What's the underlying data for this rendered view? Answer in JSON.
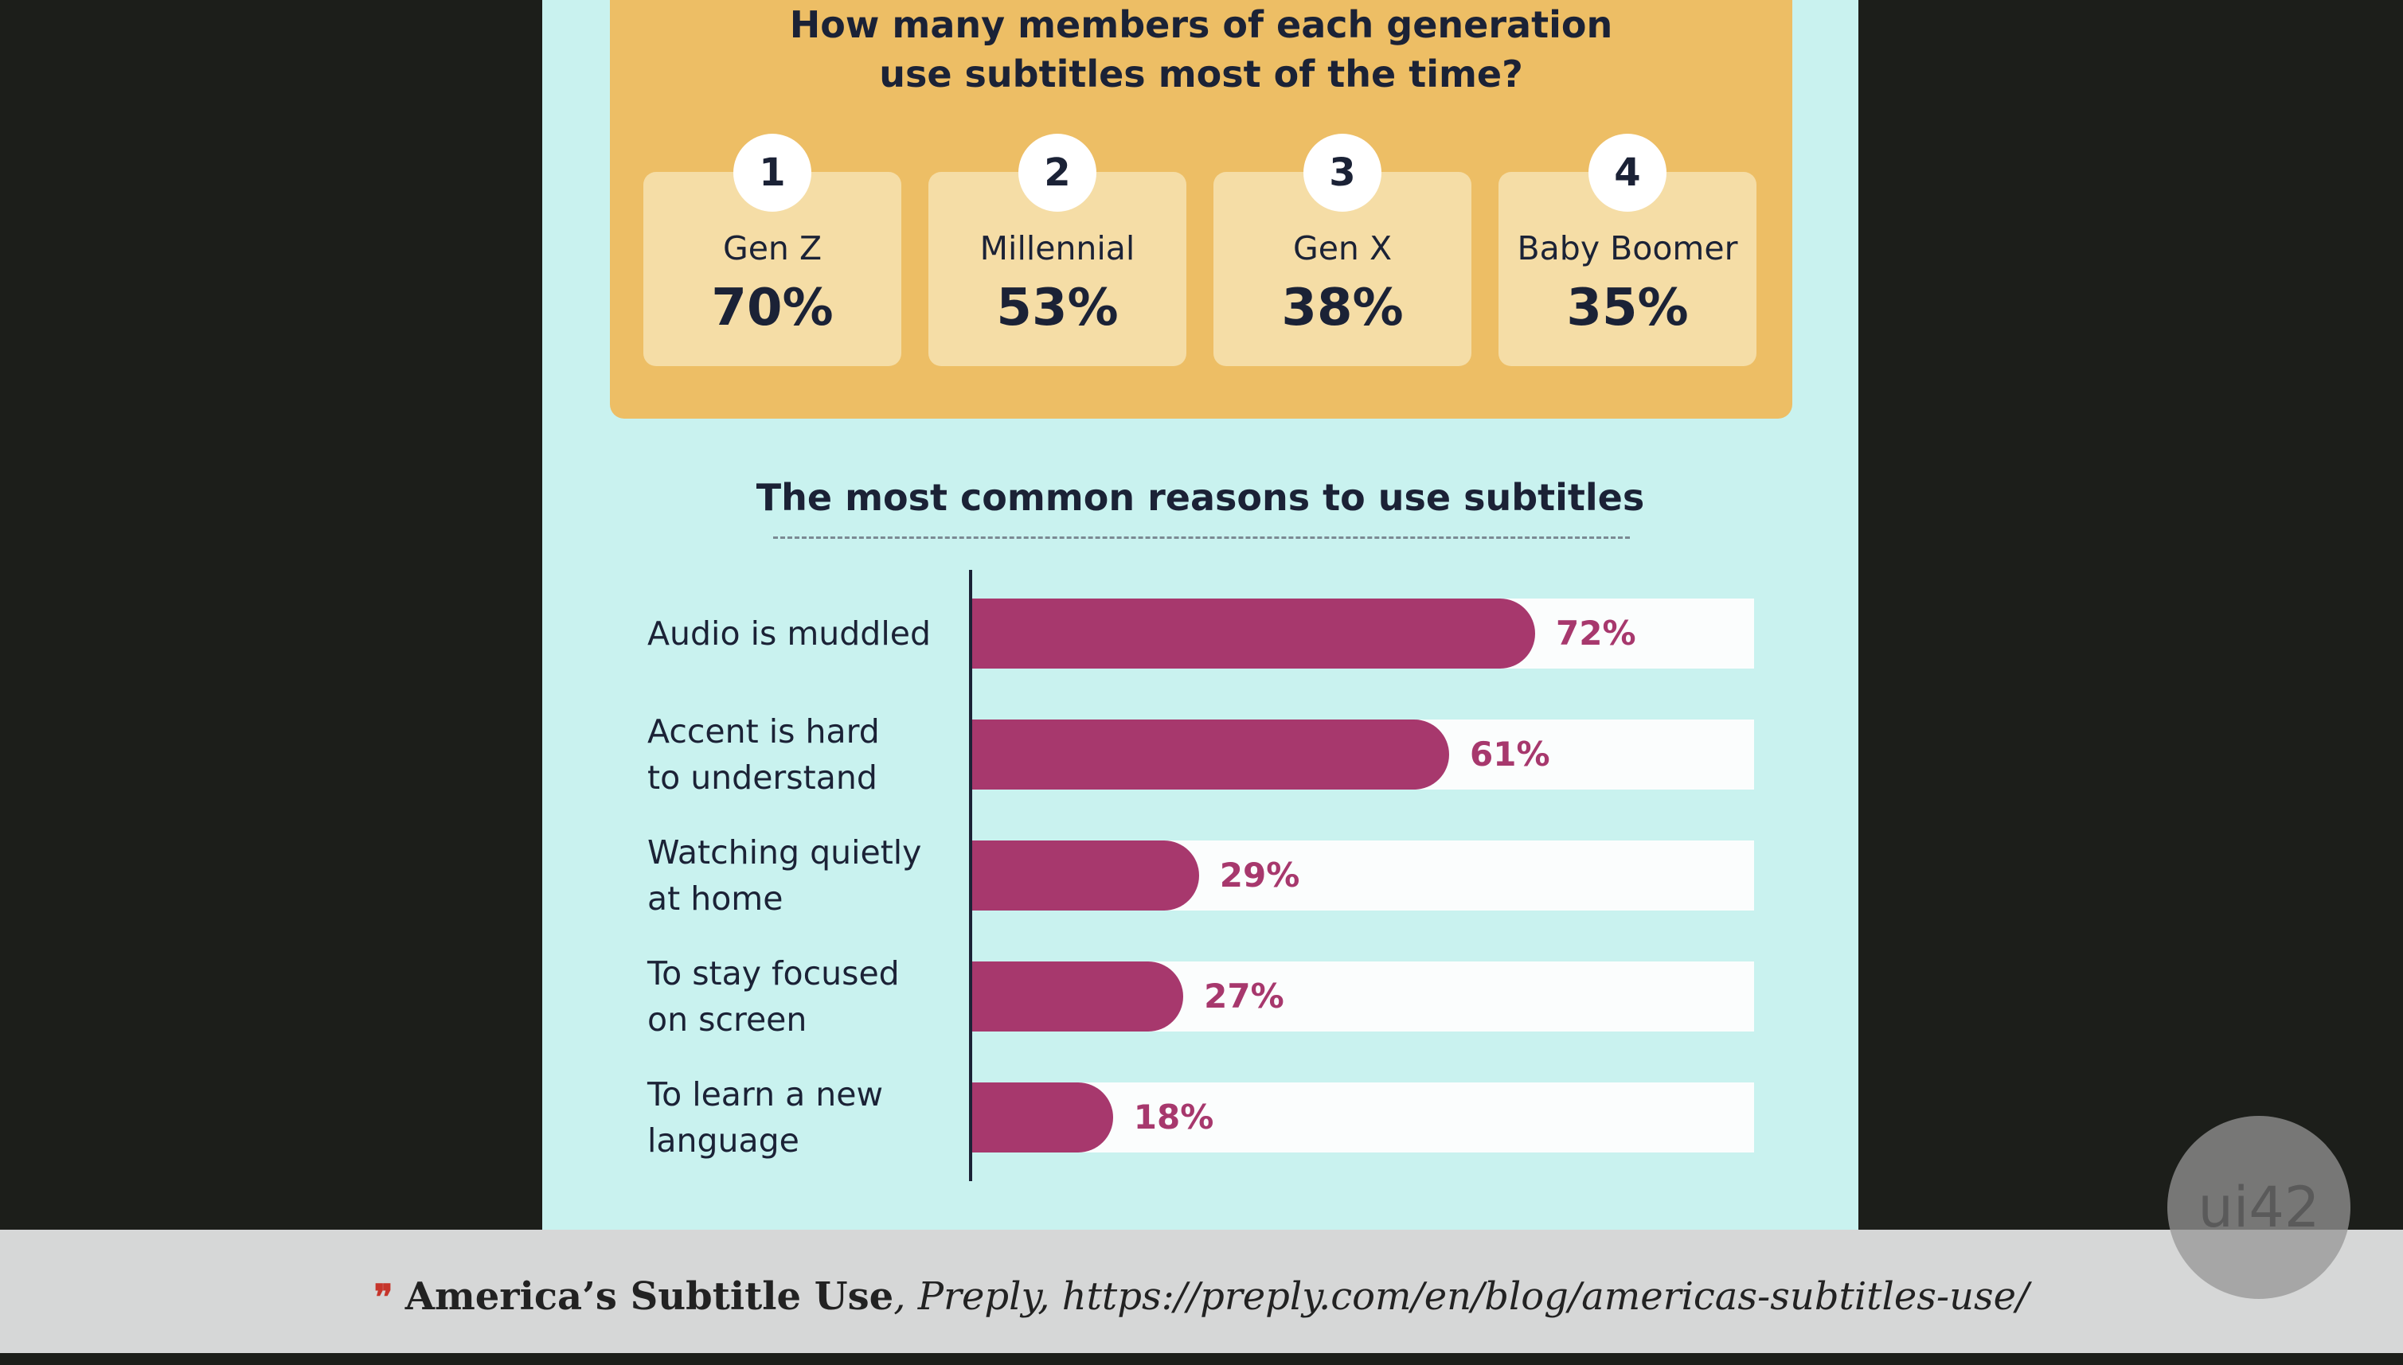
{
  "generation_card": {
    "title_line1": "How many members of each generation",
    "title_line2": "use subtitles most of the time?",
    "items": [
      {
        "rank": "1",
        "name": "Gen Z",
        "percent": "70%"
      },
      {
        "rank": "2",
        "name": "Millennial",
        "percent": "53%"
      },
      {
        "rank": "3",
        "name": "Gen X",
        "percent": "38%"
      },
      {
        "rank": "4",
        "name": "Baby Boomer",
        "percent": "35%"
      }
    ]
  },
  "chart_data": {
    "type": "bar",
    "orientation": "horizontal",
    "title": "The most common reasons to use subtitles",
    "categories": [
      "Audio is muddled",
      "Accent is hard to understand",
      "Watching quietly at home",
      "To stay focused on screen",
      "To learn a new language"
    ],
    "category_lines": [
      [
        "Audio is muddled"
      ],
      [
        "Accent is hard",
        "to understand"
      ],
      [
        "Watching quietly",
        "at home"
      ],
      [
        "To stay focused",
        "on screen"
      ],
      [
        "To learn a new",
        "language"
      ]
    ],
    "values": [
      72,
      61,
      29,
      27,
      18
    ],
    "value_labels": [
      "72%",
      "61%",
      "29%",
      "27%",
      "18%"
    ],
    "xlim": [
      0,
      100
    ],
    "grid": false,
    "colors": {
      "bar": "#a7386d",
      "track": "#fbfdfd"
    }
  },
  "footer": {
    "title": "America’s Subtitle Use",
    "publisher": "Preply",
    "url": "https://preply.com/en/blog/americas-subtitles-use/"
  },
  "watermark": {
    "text": "ui42"
  },
  "colors": {
    "background": "#1c1e1a",
    "panel": "#c9f2ef",
    "card": "#edbe65",
    "card_box": "#f5dda6",
    "text": "#1b2236",
    "accent": "#a7386d",
    "footer_bg": "#d6d7d7",
    "footer_icon": "#c6352b"
  }
}
